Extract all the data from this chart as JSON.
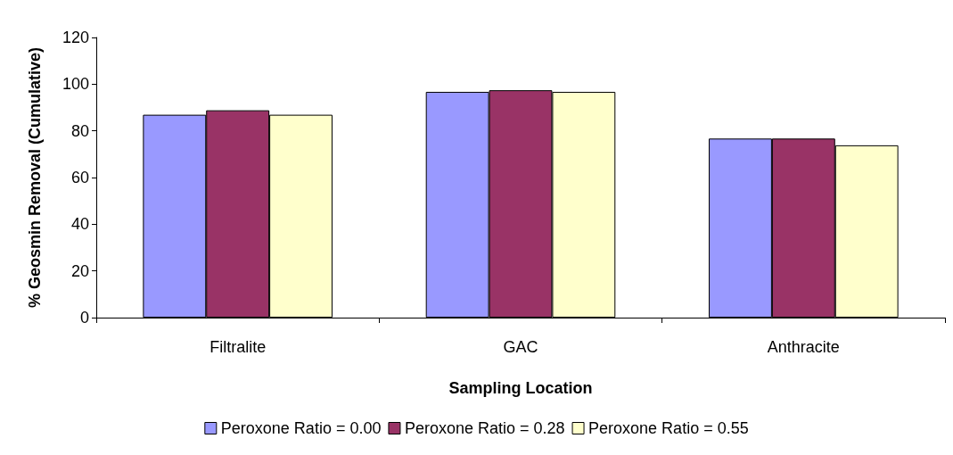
{
  "chart_data": {
    "type": "bar",
    "xlabel": "Sampling Location",
    "ylabel": "% Geosmin Removal (Cumulative)",
    "categories": [
      "Filtralite",
      "GAC",
      "Anthracite"
    ],
    "series": [
      {
        "name": "Peroxone Ratio = 0.00",
        "color": "#9999ff",
        "values": [
          86.9,
          96.7,
          76.7
        ]
      },
      {
        "name": "Peroxone Ratio = 0.28",
        "color": "#993366",
        "values": [
          88.8,
          97.4,
          76.7
        ]
      },
      {
        "name": "Peroxone Ratio = 0.55",
        "color": "#ffffcc",
        "values": [
          86.9,
          96.7,
          73.8
        ]
      }
    ],
    "ylim": [
      0,
      120
    ],
    "yticks": [
      0,
      20,
      40,
      60,
      80,
      100,
      120
    ],
    "grid": false,
    "legend": "bottom"
  }
}
